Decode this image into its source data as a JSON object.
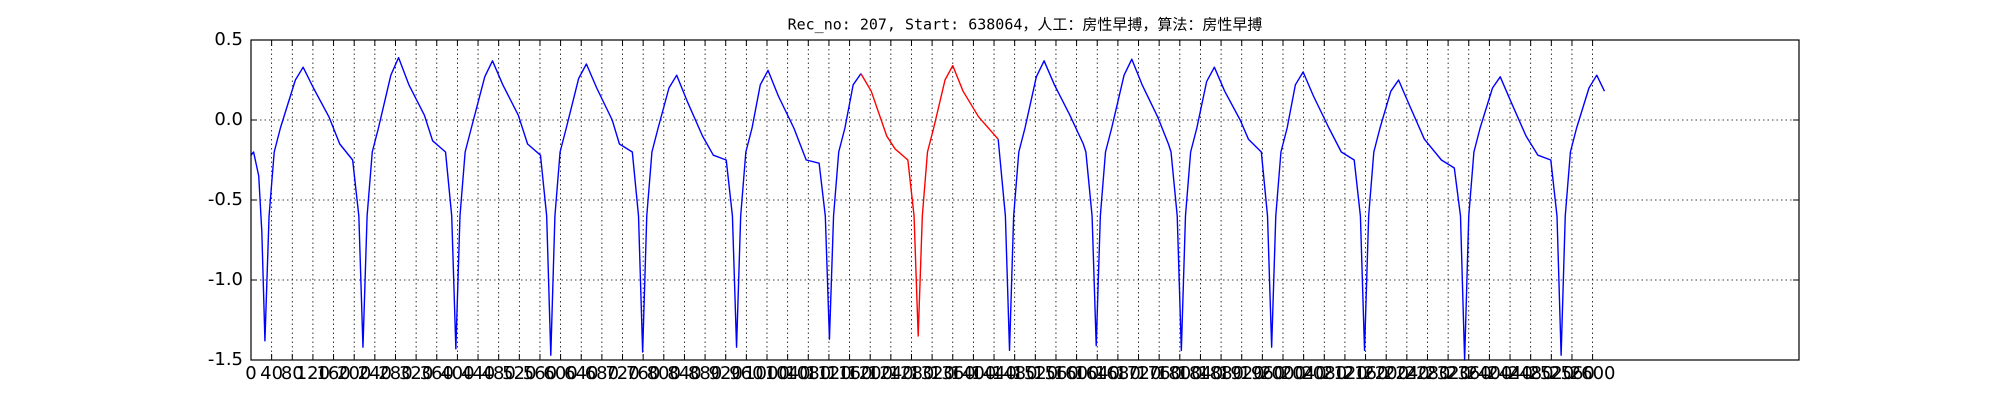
{
  "chart_data": {
    "type": "line",
    "title": "Rec_no: 207, Start: 638064，人工：房性早搏，算法：房性早搏",
    "xlim": [
      0,
      3000
    ],
    "xticks": [
      0,
      40,
      80,
      120,
      160,
      200,
      240,
      280,
      320,
      360,
      400,
      440,
      480,
      520,
      560,
      600,
      640,
      680,
      720,
      760,
      800,
      840,
      880,
      920,
      960,
      1000,
      1040,
      1080,
      1120,
      1160,
      1200,
      1240,
      1280,
      1320,
      1360,
      1400,
      1440,
      1480,
      1520,
      1560,
      1600,
      1640,
      1680,
      1720,
      1760,
      1800,
      1840,
      1880,
      1920,
      1960,
      2000,
      2040,
      2080,
      2120,
      2160,
      2200,
      2240,
      2280,
      2320,
      2360,
      2400,
      2440,
      2480,
      2520,
      2560,
      2600
    ],
    "ylim": [
      -1.5,
      0.5
    ],
    "yticks": [
      -1.5,
      {
        "value": -1,
        "label": "-1.0"
      },
      -0.5,
      {
        "value": 0,
        "label": "0.0"
      },
      0.5
    ],
    "grid": true,
    "series": [
      {
        "color": "#0000ff",
        "x": [
          0,
          5,
          15,
          21,
          27,
          35,
          45,
          57,
          86,
          101,
          121,
          151,
          172,
          197,
          209,
          217,
          225,
          235,
          247,
          271,
          286,
          306,
          336,
          352,
          377,
          389,
          397,
          405,
          415,
          427,
          453,
          468,
          488,
          518,
          536,
          561,
          573,
          581,
          589,
          599,
          611,
          635,
          650,
          670,
          700,
          714,
          739,
          751,
          759,
          767,
          777,
          789,
          810,
          825,
          845,
          875,
          896,
          921,
          933,
          941,
          949,
          959,
          971,
          987,
          1002,
          1022,
          1052,
          1076,
          1101,
          1113,
          1121,
          1129,
          1139,
          1151,
          1167,
          1182,
          null,
          1448,
          1462,
          1470,
          1478,
          1488,
          1500,
          1522,
          1537,
          1557,
          1587,
          1613,
          1618,
          1630,
          1638,
          1646,
          1656,
          1668,
          1692,
          1707,
          1727,
          1757,
          1778,
          1783,
          1795,
          1803,
          1811,
          1821,
          1833,
          1852,
          1867,
          1887,
          1917,
          1933,
          1958,
          1970,
          1978,
          1986,
          1996,
          2008,
          2024,
          2039,
          2059,
          2089,
          2113,
          2138,
          2150,
          2158,
          2166,
          2176,
          2188,
          2209,
          2224,
          2244,
          2274,
          2307,
          2332,
          2344,
          2352,
          2360,
          2370,
          2382,
          2406,
          2421,
          2441,
          2471,
          2494,
          2519,
          2531,
          2539,
          2547,
          2557,
          2569,
          2593,
          2608,
          2623
        ],
        "values": [
          -0.22,
          -0.2,
          -0.35,
          -0.7,
          -1.38,
          -0.6,
          -0.2,
          -0.05,
          0.25,
          0.33,
          0.2,
          0.02,
          -0.15,
          -0.25,
          -0.6,
          -1.42,
          -0.6,
          -0.2,
          -0.05,
          0.28,
          0.39,
          0.22,
          0.03,
          -0.13,
          -0.2,
          -0.6,
          -1.43,
          -0.6,
          -0.2,
          -0.05,
          0.27,
          0.37,
          0.22,
          0.03,
          -0.15,
          -0.22,
          -0.6,
          -1.47,
          -0.6,
          -0.2,
          -0.05,
          0.26,
          0.35,
          0.2,
          0.0,
          -0.15,
          -0.2,
          -0.6,
          -1.45,
          -0.6,
          -0.2,
          -0.05,
          0.2,
          0.28,
          0.12,
          -0.1,
          -0.22,
          -0.25,
          -0.6,
          -1.42,
          -0.6,
          -0.2,
          -0.05,
          0.22,
          0.31,
          0.15,
          -0.05,
          -0.25,
          -0.27,
          -0.6,
          -1.37,
          -0.6,
          -0.2,
          -0.05,
          0.22,
          0.29,
          null,
          -0.12,
          -0.6,
          -1.44,
          -0.6,
          -0.2,
          -0.05,
          0.27,
          0.37,
          0.22,
          0.03,
          -0.15,
          -0.2,
          -0.6,
          -1.41,
          -0.6,
          -0.2,
          -0.05,
          0.28,
          0.38,
          0.22,
          0.02,
          -0.15,
          -0.2,
          -0.6,
          -1.44,
          -0.6,
          -0.2,
          -0.05,
          0.24,
          0.33,
          0.18,
          0.0,
          -0.12,
          -0.2,
          -0.6,
          -1.42,
          -0.6,
          -0.2,
          -0.05,
          0.22,
          0.3,
          0.15,
          -0.05,
          -0.2,
          -0.25,
          -0.6,
          -1.44,
          -0.6,
          -0.2,
          -0.05,
          0.18,
          0.25,
          0.1,
          -0.12,
          -0.25,
          -0.3,
          -0.6,
          -1.5,
          -0.6,
          -0.2,
          -0.05,
          0.2,
          0.27,
          0.12,
          -0.1,
          -0.22,
          -0.25,
          -0.6,
          -1.47,
          -0.6,
          -0.2,
          -0.05,
          0.2,
          0.28,
          0.18
        ]
      },
      {
        "color": "#ff0000",
        "x": [
          1182,
          1202,
          1232,
          1248,
          1273,
          1285,
          1293,
          1301,
          1311,
          1323,
          1345,
          1360,
          1380,
          1410,
          1448
        ],
        "values": [
          0.29,
          0.18,
          -0.1,
          -0.18,
          -0.25,
          -0.6,
          -1.35,
          -0.6,
          -0.2,
          -0.05,
          0.25,
          0.34,
          0.18,
          0.02,
          -0.12
        ]
      }
    ]
  }
}
